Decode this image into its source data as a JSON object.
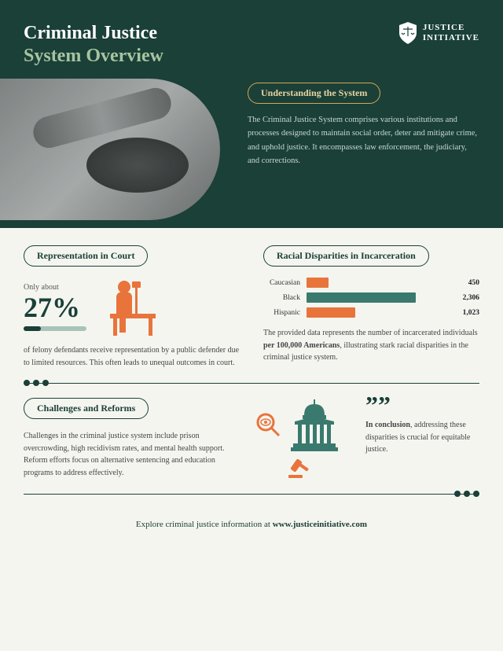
{
  "header": {
    "title_line1": "Criminal Justice",
    "title_line2": "System Overview",
    "logo_text_line1": "JUSTICE",
    "logo_text_line2": "INITIATIVE"
  },
  "intro": {
    "pill": "Understanding the System",
    "text": "The Criminal Justice System comprises various institutions and processes designed to maintain social order, deter and mitigate crime, and uphold justice. It encompasses law enforcement, the judiciary, and corrections."
  },
  "representation": {
    "pill": "Representation in Court",
    "only_about": "Only about",
    "percent": "27%",
    "para": "of felony defendants receive representation by a public defender due to limited resources. This often leads to unequal outcomes in court."
  },
  "disparities": {
    "pill": "Racial Disparities in Incarceration",
    "bars": [
      {
        "label": "Caucasian",
        "value": 450,
        "display": "450",
        "color": "#e8743b",
        "max": 2306
      },
      {
        "label": "Black",
        "value": 2306,
        "display": "2,306",
        "color": "#3a7a6e",
        "max": 2306
      },
      {
        "label": "Hispanic",
        "value": 1023,
        "display": "1,023",
        "color": "#e8743b",
        "max": 2306
      }
    ],
    "para_prefix": "The provided data represents the number of incarcerated individuals ",
    "para_bold": "per 100,000 Americans",
    "para_suffix": ", illustrating stark racial disparities in the criminal justice system."
  },
  "challenges": {
    "pill": "Challenges and Reforms",
    "para": "Challenges in the criminal justice system include prison overcrowding, high recidivism rates, and mental health support. Reform efforts focus on alternative sentencing and education programs to address effectively."
  },
  "conclusion": {
    "bold": "In conclusion",
    "text": ", addressing these disparities is crucial for equitable justice."
  },
  "footer": {
    "prefix": "Explore criminal justice information at ",
    "link": "www.justiceinitiative.com"
  },
  "colors": {
    "dark_green": "#1a4038",
    "orange": "#e8743b",
    "teal": "#3a7a6e",
    "light_green": "#a8c4a0"
  }
}
